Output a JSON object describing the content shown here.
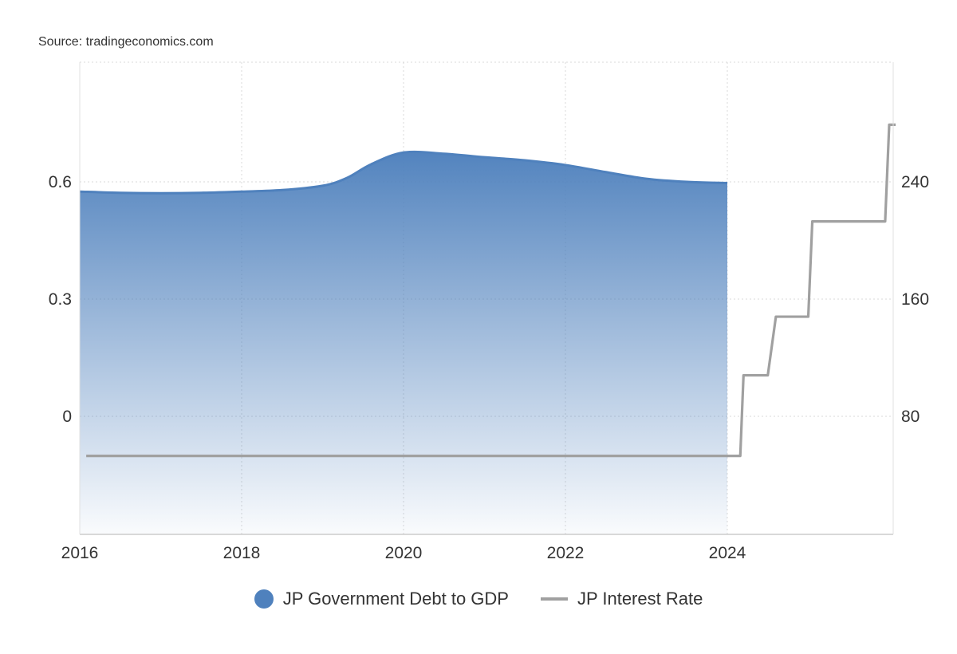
{
  "source": "Source: tradingeconomics.com",
  "chart_data": {
    "type": "area",
    "x_ticks": [
      "2016",
      "2018",
      "2020",
      "2022",
      "2024"
    ],
    "y_left_ticks": [
      "0.6",
      "0.3",
      "0"
    ],
    "y_right_ticks": [
      "240",
      "160",
      "80"
    ],
    "grid": true,
    "legend_position": "bottom",
    "series": [
      {
        "name": "JP Government Debt to GDP",
        "axis": "left",
        "style": "area",
        "color": "#4f81bd",
        "points": [
          [
            2016.0,
            0.575
          ],
          [
            2016.5,
            0.572
          ],
          [
            2017.0,
            0.571
          ],
          [
            2017.5,
            0.572
          ],
          [
            2018.0,
            0.575
          ],
          [
            2018.5,
            0.579
          ],
          [
            2019.0,
            0.59
          ],
          [
            2019.3,
            0.61
          ],
          [
            2019.6,
            0.645
          ],
          [
            2020.0,
            0.675
          ],
          [
            2020.5,
            0.672
          ],
          [
            2021.0,
            0.663
          ],
          [
            2021.5,
            0.655
          ],
          [
            2022.0,
            0.643
          ],
          [
            2022.5,
            0.625
          ],
          [
            2023.0,
            0.608
          ],
          [
            2023.5,
            0.6
          ],
          [
            2024.0,
            0.597
          ]
        ]
      },
      {
        "name": "JP Interest Rate",
        "axis": "right",
        "style": "step",
        "color": "#a0a0a0",
        "points": [
          [
            2016.08,
            53
          ],
          [
            2024.16,
            53
          ],
          [
            2024.2,
            108
          ],
          [
            2024.5,
            108
          ],
          [
            2024.6,
            148
          ],
          [
            2025.0,
            148
          ],
          [
            2025.05,
            213
          ],
          [
            2025.95,
            213
          ],
          [
            2026.0,
            279
          ],
          [
            2026.08,
            279
          ]
        ]
      }
    ]
  }
}
